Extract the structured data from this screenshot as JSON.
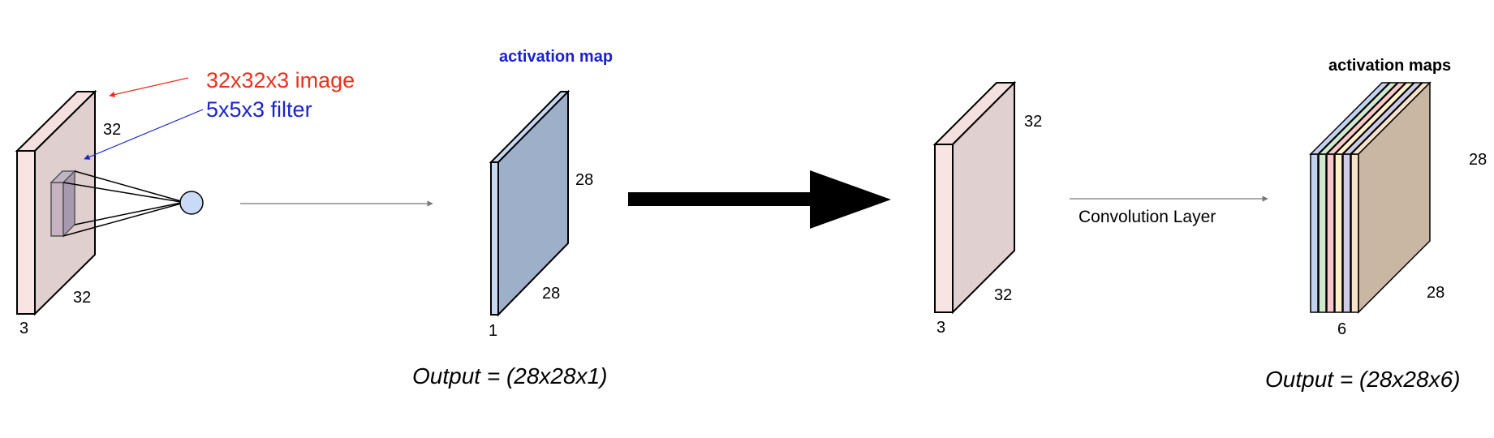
{
  "input_volume": {
    "depth_label": "3",
    "height_label": "32",
    "width_label": "32",
    "face_color": "#dfd0cf",
    "side_color": "#f7e4e3"
  },
  "annotations": {
    "image_text": "32x32x3 image",
    "image_color": "#e8301c",
    "filter_text": "5x5x3 filter",
    "filter_color": "#1a24c8"
  },
  "filter": {
    "neuron_color": "#c9daf6"
  },
  "single_map": {
    "title": "activation map",
    "title_color": "#1a1fd0",
    "height_label": "28",
    "width_label": "28",
    "depth_label": "1",
    "face_color": "#9eafc9",
    "side_color": "#c6d8f2",
    "output_text": "Output = (28x28x1)"
  },
  "second_input": {
    "height_label": "32",
    "width_label": "32",
    "depth_label": "3",
    "face_color": "#e0d0cf",
    "side_color": "#f7e4e3"
  },
  "conv_layer": {
    "label": "Convolution Layer"
  },
  "maps_stack": {
    "title": "activation maps",
    "height_label": "28",
    "width_label": "28",
    "depth_label": "6",
    "layer_colors": [
      "#c3d2ee",
      "#d2e8cc",
      "#f7c8c9",
      "#fbf0c7",
      "#cfcbe6",
      "#f7e2ca"
    ],
    "front_face_color": "#c9b7a3",
    "output_text": "Output = (28x28x6)"
  }
}
